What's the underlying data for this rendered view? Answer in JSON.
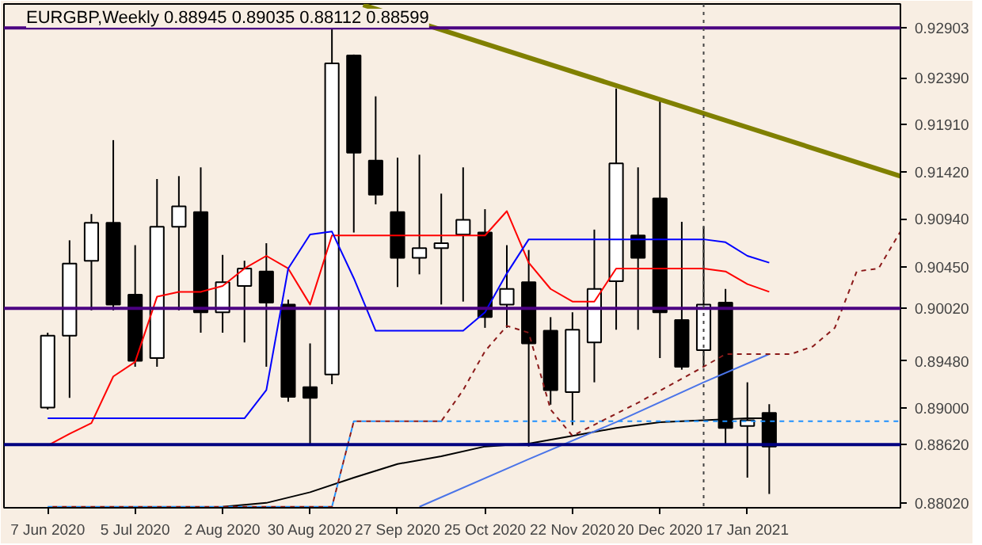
{
  "chart_data": {
    "type": "candlestick",
    "title": "EURGBP,Weekly 0.88945 0.89035 0.88112 0.88599",
    "x": [
      "2020-06-07",
      "2020-06-14",
      "2020-06-21",
      "2020-06-28",
      "2020-07-05",
      "2020-07-12",
      "2020-07-19",
      "2020-07-26",
      "2020-08-02",
      "2020-08-09",
      "2020-08-16",
      "2020-08-23",
      "2020-08-30",
      "2020-09-06",
      "2020-09-13",
      "2020-09-20",
      "2020-09-27",
      "2020-10-04",
      "2020-10-11",
      "2020-10-18",
      "2020-10-25",
      "2020-11-01",
      "2020-11-08",
      "2020-11-15",
      "2020-11-22",
      "2020-11-29",
      "2020-12-06",
      "2020-12-13",
      "2020-12-20",
      "2020-12-27",
      "2021-01-03",
      "2021-01-10",
      "2021-01-17",
      "2021-01-24"
    ],
    "ohlc": [
      [
        0.89,
        0.8977,
        0.8898,
        0.8974
      ],
      [
        0.8974,
        0.9072,
        0.891,
        0.9048
      ],
      [
        0.9051,
        0.9099,
        0.9,
        0.909
      ],
      [
        0.909,
        0.9175,
        0.9,
        0.9006
      ],
      [
        0.9016,
        0.9067,
        0.8942,
        0.8948
      ],
      [
        0.8951,
        0.9135,
        0.8942,
        0.9086
      ],
      [
        0.9086,
        0.9138,
        0.9,
        0.9107
      ],
      [
        0.9101,
        0.9147,
        0.8977,
        0.8998
      ],
      [
        0.8998,
        0.9057,
        0.8977,
        0.9029
      ],
      [
        0.9025,
        0.9051,
        0.8967,
        0.9043
      ],
      [
        0.904,
        0.9069,
        0.8942,
        0.9008
      ],
      [
        0.9006,
        0.9011,
        0.8906,
        0.8911
      ],
      [
        0.8921,
        0.8966,
        0.8861,
        0.891
      ],
      [
        0.8934,
        0.929,
        0.8924,
        0.9254
      ],
      [
        0.9262,
        0.9263,
        0.908,
        0.9162
      ],
      [
        0.9154,
        0.922,
        0.9109,
        0.9119
      ],
      [
        0.9101,
        0.9157,
        0.9024,
        0.9054
      ],
      [
        0.9054,
        0.916,
        0.9037,
        0.9064
      ],
      [
        0.9064,
        0.912,
        0.9006,
        0.9069
      ],
      [
        0.9078,
        0.9147,
        0.9009,
        0.9093
      ],
      [
        0.908,
        0.9104,
        0.8982,
        0.8993
      ],
      [
        0.9006,
        0.9067,
        0.8982,
        0.9022
      ],
      [
        0.9029,
        0.9062,
        0.886,
        0.8966
      ],
      [
        0.8979,
        0.8993,
        0.8903,
        0.8918
      ],
      [
        0.8916,
        0.8998,
        0.8882,
        0.898
      ],
      [
        0.8967,
        0.9083,
        0.8926,
        0.9022
      ],
      [
        0.903,
        0.9228,
        0.898,
        0.9151
      ],
      [
        0.9077,
        0.9147,
        0.898,
        0.9054
      ],
      [
        0.9115,
        0.9215,
        0.8951,
        0.8998
      ],
      [
        0.899,
        0.9091,
        0.8939,
        0.8942
      ],
      [
        0.8959,
        0.9086,
        0.8942,
        0.9006
      ],
      [
        0.9008,
        0.9022,
        0.8861,
        0.8879
      ],
      [
        0.8881,
        0.8926,
        0.8828,
        0.8887
      ],
      [
        0.88945,
        0.89035,
        0.88112,
        0.88599
      ]
    ],
    "series": [
      {
        "type": "line",
        "color": "#ff0000",
        "line_style": "solid",
        "x": [
          "2020-06-07",
          "2020-06-14",
          "2020-06-21",
          "2020-06-28",
          "2020-07-05",
          "2020-07-12",
          "2020-07-19",
          "2020-07-26",
          "2020-08-02",
          "2020-08-09",
          "2020-08-16",
          "2020-08-23",
          "2020-08-30",
          "2020-09-06",
          "2020-09-13",
          "2020-09-20",
          "2020-09-27",
          "2020-10-04",
          "2020-10-11",
          "2020-10-18",
          "2020-10-25",
          "2020-11-01",
          "2020-11-08",
          "2020-11-15",
          "2020-11-22",
          "2020-11-29",
          "2020-12-06",
          "2020-12-13",
          "2020-12-20",
          "2020-12-27",
          "2021-01-03",
          "2021-01-10",
          "2021-01-17",
          "2021-01-24"
        ],
        "values": [
          0.8861,
          0.8873,
          0.8884,
          0.8932,
          0.8947,
          0.9014,
          0.9019,
          0.9019,
          0.9025,
          0.9043,
          0.9056,
          0.9043,
          0.9006,
          0.9077,
          0.9077,
          0.9077,
          0.9077,
          0.9077,
          0.9077,
          0.9077,
          0.9077,
          0.9102,
          0.9049,
          0.9022,
          0.9009,
          0.9009,
          0.9043,
          0.9043,
          0.9043,
          0.9043,
          0.9043,
          0.904,
          0.9027,
          0.9019
        ]
      },
      {
        "type": "line",
        "color": "#0000ff",
        "line_style": "solid",
        "x": [
          "2020-06-07",
          "2020-06-14",
          "2020-06-21",
          "2020-06-28",
          "2020-07-05",
          "2020-07-12",
          "2020-07-19",
          "2020-07-26",
          "2020-08-02",
          "2020-08-09",
          "2020-08-16",
          "2020-08-23",
          "2020-08-30",
          "2020-09-06",
          "2020-09-13",
          "2020-09-20",
          "2020-09-27",
          "2020-10-04",
          "2020-10-11",
          "2020-10-18",
          "2020-10-25",
          "2020-11-01",
          "2020-11-08",
          "2020-11-15",
          "2020-11-22",
          "2020-11-29",
          "2020-12-06",
          "2020-12-13",
          "2020-12-20",
          "2020-12-27",
          "2021-01-03",
          "2021-01-10",
          "2021-01-17",
          "2021-01-24"
        ],
        "values": [
          0.8889,
          0.8889,
          0.8889,
          0.8889,
          0.8889,
          0.8889,
          0.8889,
          0.8889,
          0.8889,
          0.8889,
          0.8918,
          0.9043,
          0.9078,
          0.9081,
          0.9033,
          0.8979,
          0.8979,
          0.8979,
          0.8979,
          0.8979,
          0.8998,
          0.9038,
          0.9073,
          0.9073,
          0.9073,
          0.9073,
          0.9073,
          0.9073,
          0.9073,
          0.9073,
          0.9073,
          0.907,
          0.9056,
          0.9049
        ]
      },
      {
        "type": "line",
        "color": "#000000",
        "line_style": "solid",
        "x": [
          "2020-08-02",
          "2020-08-16",
          "2020-08-30",
          "2020-09-13",
          "2020-09-27",
          "2020-10-11",
          "2020-10-25",
          "2020-11-08",
          "2020-11-22",
          "2020-12-06",
          "2020-12-20",
          "2021-01-03",
          "2021-01-17",
          "2021-01-24"
        ],
        "values": [
          0.8798,
          0.8802,
          0.8813,
          0.8828,
          0.8842,
          0.885,
          0.886,
          0.8863,
          0.8871,
          0.8879,
          0.8885,
          0.8887,
          0.8889,
          0.8889
        ]
      },
      {
        "type": "line",
        "color": "#4a74e8",
        "line_style": "solid",
        "x": [
          "2020-10-04",
          "2020-11-08",
          "2020-12-06",
          "2021-01-03",
          "2021-01-24"
        ],
        "values": [
          0.8798,
          0.8847,
          0.8885,
          0.8926,
          0.8955
        ]
      },
      {
        "type": "line",
        "color": "#1e90ff",
        "line_style": "dashed",
        "x": [
          "2020-06-07",
          "2020-09-06",
          "2020-09-13",
          "2021-03-07"
        ],
        "values": [
          0.8798,
          0.8798,
          0.8886,
          0.8886
        ]
      },
      {
        "type": "line",
        "color": "#8b1a1a",
        "line_style": "dashed",
        "x": [
          "2020-06-07",
          "2020-09-06",
          "2020-09-13",
          "2020-10-11",
          "2020-10-18",
          "2020-10-25",
          "2020-11-01",
          "2020-11-08",
          "2020-11-15",
          "2020-11-22",
          "2020-12-13",
          "2021-01-03",
          "2021-01-10",
          "2021-01-31",
          "2021-02-07",
          "2021-02-14",
          "2021-02-21",
          "2021-02-28",
          "2021-03-07"
        ],
        "values": [
          0.8798,
          0.8798,
          0.8886,
          0.8886,
          0.8918,
          0.8958,
          0.8984,
          0.8977,
          0.8898,
          0.8871,
          0.8905,
          0.8942,
          0.8955,
          0.8955,
          0.8963,
          0.8982,
          0.904,
          0.9043,
          0.9081
        ]
      },
      {
        "type": "line",
        "color": "#808000",
        "line_style": "solid",
        "x": [
          "2020-09-16",
          "2021-03-07"
        ],
        "values": [
          0.9314,
          0.9138
        ]
      }
    ],
    "xlim": [
      "2020-05-24",
      "2021-03-07"
    ],
    "ylim": [
      0.8797,
      0.9315
    ],
    "xticks": [
      {
        "value": "2020-06-07",
        "label": "7 Jun 2020"
      },
      {
        "value": "2020-07-05",
        "label": "5 Jul 2020"
      },
      {
        "value": "2020-08-02",
        "label": "2 Aug 2020"
      },
      {
        "value": "2020-08-30",
        "label": "30 Aug 2020"
      },
      {
        "value": "2020-09-27",
        "label": "27 Sep 2020"
      },
      {
        "value": "2020-10-25",
        "label": "25 Oct 2020"
      },
      {
        "value": "2020-11-22",
        "label": "22 Nov 2020"
      },
      {
        "value": "2020-12-20",
        "label": "20 Dec 2020"
      },
      {
        "value": "2021-01-17",
        "label": "17 Jan 2021"
      }
    ],
    "yticks": [
      {
        "value": 0.9239,
        "label": "0.92390"
      },
      {
        "value": 0.9191,
        "label": "0.91910"
      },
      {
        "value": 0.9142,
        "label": "0.91420"
      },
      {
        "value": 0.9094,
        "label": "0.90940"
      },
      {
        "value": 0.9045,
        "label": "0.90450"
      },
      {
        "value": 0.8948,
        "label": "0.89480"
      },
      {
        "value": 0.89,
        "label": "0.89000"
      },
      {
        "value": 0.8802,
        "label": "0.88020"
      }
    ],
    "ref_lines": [
      {
        "axis": "y",
        "value": 0.92903,
        "label": "0.92903",
        "color": "#4b0082",
        "line_style": "solid"
      },
      {
        "axis": "y",
        "value": 0.9002,
        "label": "0.90020",
        "color": "#4b0082",
        "line_style": "solid"
      },
      {
        "axis": "y",
        "value": 0.8862,
        "label": "0.88620",
        "color": "#000080",
        "line_style": "solid"
      },
      {
        "axis": "x",
        "value": "2021-01-03",
        "label": null,
        "color": "#444444",
        "line_style": "dotted"
      }
    ]
  }
}
